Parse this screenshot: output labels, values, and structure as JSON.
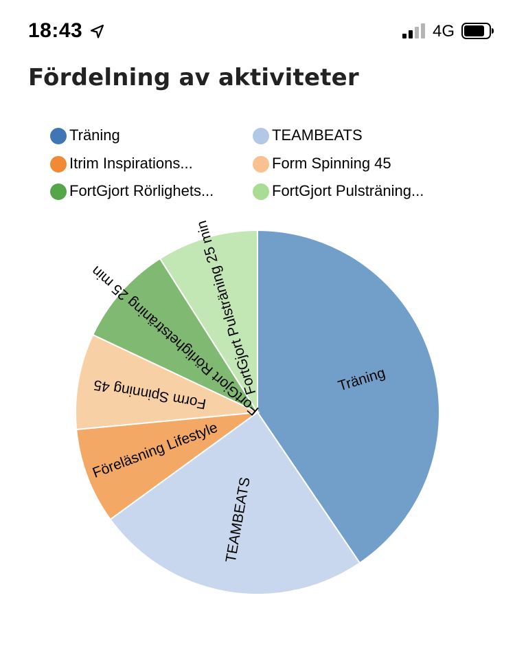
{
  "status_bar": {
    "time": "18:43",
    "network": "4G",
    "icons": [
      "location-arrow-icon",
      "signal-icon",
      "battery-icon"
    ]
  },
  "header": {
    "title": "Fördelning av aktiviteter"
  },
  "chart_data": {
    "type": "pie",
    "title": "Fördelning av aktiviteter",
    "legend_position": "top",
    "categories": [
      "Träning",
      "TEAMBEATS",
      "Itrim Inspirationsföreläsning Lifestyle",
      "Form Spinning 45",
      "FortGjort Rörlighetsträning 25 min",
      "FortGjort Pulsträning 25 min"
    ],
    "legend_labels": [
      "Träning",
      "TEAMBEATS",
      "Itrim Inspirations...",
      "Form Spinning 45",
      "FortGjort Rörlighets...",
      "FortGjort Pulsträning..."
    ],
    "slice_labels": [
      "Träning",
      "TEAMBEATS",
      "Föreläsning Lifestyle",
      "Form Spinning 45",
      "FortGjort Rörlighetsträning 25 min",
      "FortGjort Pulsträning 25 min"
    ],
    "values": [
      40.5,
      24.5,
      8.5,
      8.5,
      9.0,
      9.0
    ],
    "legend_colors": [
      "#3f76b3",
      "#b3c7e6",
      "#f08a35",
      "#f7c28f",
      "#55a648",
      "#a9dd96"
    ],
    "slice_colors": [
      "#719fc9",
      "#c8d7ed",
      "#f3a865",
      "#f7d0a6",
      "#80b972",
      "#c2e6b4"
    ]
  }
}
